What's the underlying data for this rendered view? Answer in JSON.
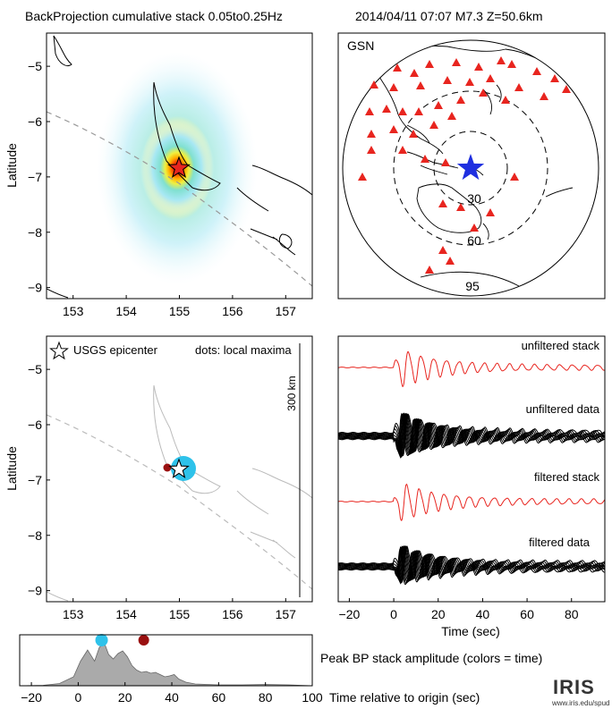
{
  "header": {
    "title": "BackProjection cumulative stack 0.05to0.25Hz",
    "event": "2014/04/11 07:07   M7.3  Z=50.6km"
  },
  "map_top": {
    "ylabel": "Latitude",
    "xticks": [
      "153",
      "154",
      "155",
      "156",
      "157"
    ],
    "yticks": [
      "−5",
      "−6",
      "−7",
      "−8",
      "−9"
    ]
  },
  "globe": {
    "network": "GSN",
    "rings": [
      "30",
      "60",
      "95"
    ]
  },
  "map_bottom": {
    "ylabel": "Latitude",
    "legend_star": "USGS epicenter",
    "legend_dots": "dots: local maxima",
    "scale_label": "300 km",
    "xticks": [
      "153",
      "154",
      "155",
      "156",
      "157"
    ],
    "yticks": [
      "−5",
      "−6",
      "−7",
      "−8",
      "−9"
    ]
  },
  "traces": {
    "labels": [
      "unfiltered stack",
      "unfiltered data",
      "filtered stack",
      "filtered data"
    ],
    "xlabel": "Time (sec)",
    "xticks": [
      "−20",
      "0",
      "20",
      "40",
      "60",
      "80"
    ]
  },
  "amplitude": {
    "label": "Peak BP stack amplitude (colors = time)",
    "xlabel": "Time relative to origin (sec)",
    "xticks": [
      "−20",
      "0",
      "20",
      "40",
      "60",
      "80",
      "100"
    ]
  },
  "logo": {
    "name": "IRIS",
    "url": "www.iris.edu/spud"
  },
  "colors": {
    "stack": "#e8251f",
    "data": "#000000",
    "star": "#1f2fe0",
    "station": "#e8251f",
    "peak_early": "#2ec2ea",
    "peak_late": "#9a1010",
    "fill": "#aaaaaa"
  },
  "chart_data": [
    {
      "type": "heatmap",
      "title": "BackProjection cumulative stack 0.05to0.25Hz",
      "xlabel": "",
      "ylabel": "Latitude",
      "xlim": [
        152.5,
        157.5
      ],
      "ylim": [
        -9.2,
        -4.4
      ],
      "epicenter": {
        "lon": 155.05,
        "lat": -6.65
      },
      "peak": {
        "lon": 155.0,
        "lat": -6.7
      }
    },
    {
      "type": "scatter",
      "title": "GSN",
      "rings_deg": [
        30,
        60,
        95
      ],
      "epicenter_marker": "star"
    },
    {
      "type": "scatter",
      "xlabel": "",
      "ylabel": "Latitude",
      "xlim": [
        152.5,
        157.5
      ],
      "ylim": [
        -9.2,
        -4.4
      ],
      "series": [
        {
          "name": "USGS epicenter",
          "points": [
            {
              "lon": 155.05,
              "lat": -6.65
            }
          ]
        },
        {
          "name": "dots: local maxima",
          "points": [
            {
              "lon": 155.15,
              "lat": -6.65,
              "t": 10
            },
            {
              "lon": 154.85,
              "lat": -6.62,
              "t": 28
            }
          ]
        }
      ]
    },
    {
      "type": "line",
      "xlabel": "Time (sec)",
      "xlim": [
        -25,
        95
      ],
      "series": [
        {
          "name": "unfiltered stack"
        },
        {
          "name": "unfiltered data"
        },
        {
          "name": "filtered stack"
        },
        {
          "name": "filtered data"
        }
      ]
    },
    {
      "type": "area",
      "title": "Peak BP stack amplitude (colors = time)",
      "xlabel": "Time relative to origin (sec)",
      "xlim": [
        -25,
        100
      ],
      "x": [
        -25,
        -15,
        -8,
        -2,
        1,
        4,
        7,
        9,
        11,
        13,
        15,
        17,
        19,
        21,
        23,
        25,
        27,
        29,
        31,
        33,
        35,
        37,
        39,
        41,
        43,
        46,
        50,
        60,
        70,
        80,
        90,
        100
      ],
      "y": [
        0,
        0.01,
        0.05,
        0.2,
        0.55,
        0.8,
        0.55,
        0.85,
        0.98,
        0.7,
        0.6,
        0.72,
        0.78,
        0.65,
        0.45,
        0.35,
        0.3,
        0.32,
        0.28,
        0.3,
        0.25,
        0.2,
        0.22,
        0.25,
        0.15,
        0.08,
        0.04,
        0.02,
        0.02,
        0.03,
        0.02,
        0.0
      ],
      "peaks": [
        {
          "t": 10,
          "color": "#2ec2ea"
        },
        {
          "t": 28,
          "color": "#9a1010"
        }
      ]
    }
  ]
}
